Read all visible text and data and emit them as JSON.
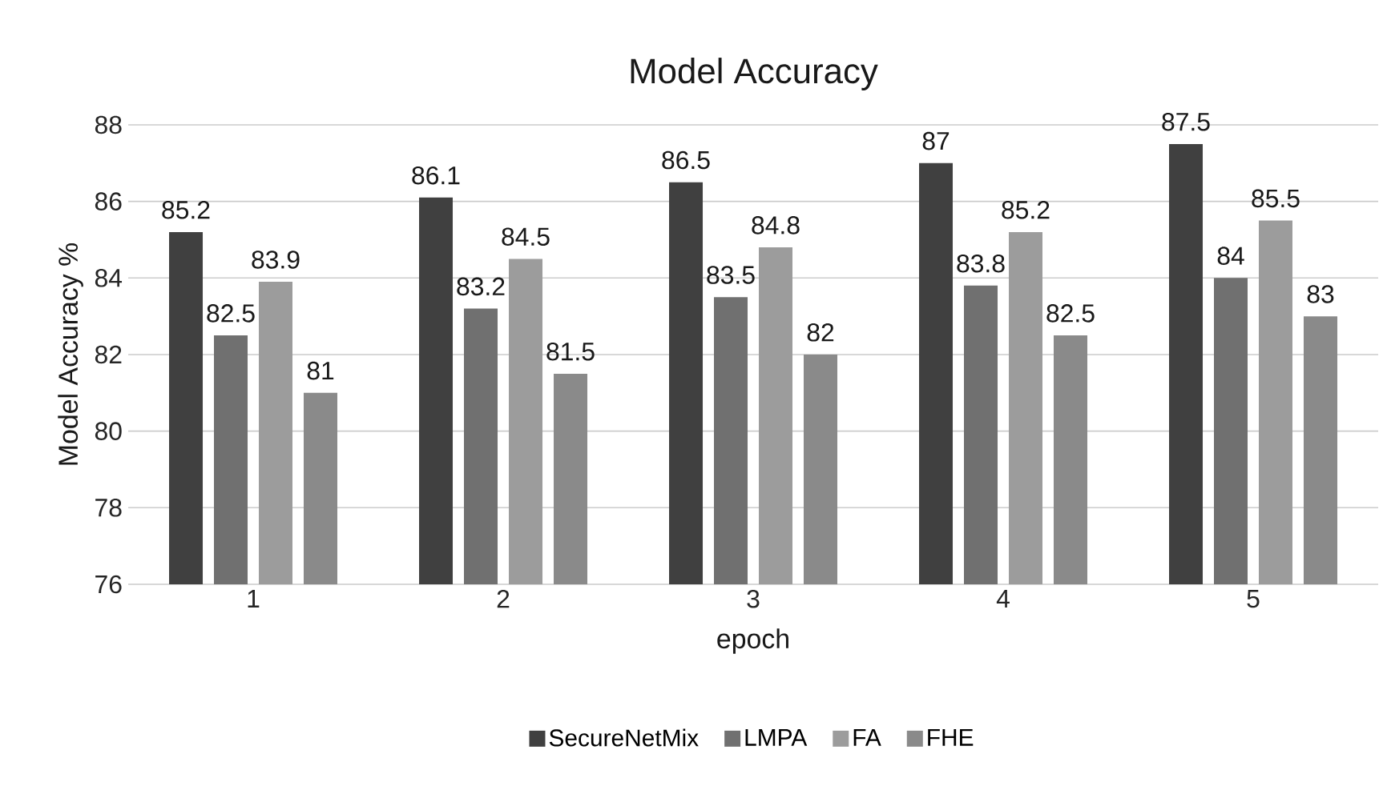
{
  "chart_data": {
    "type": "bar",
    "title": "Model Accuracy",
    "xlabel": "epoch",
    "ylabel": "Model Accuracy %",
    "categories": [
      "1",
      "2",
      "3",
      "4",
      "5"
    ],
    "series": [
      {
        "name": "SecureNetMix",
        "color": "#404040",
        "values": [
          85.2,
          86.1,
          86.5,
          87,
          87.5
        ]
      },
      {
        "name": "LMPA",
        "color": "#707070",
        "values": [
          82.5,
          83.2,
          83.5,
          83.8,
          84
        ]
      },
      {
        "name": "FA",
        "color": "#9c9c9c",
        "values": [
          83.9,
          84.5,
          84.8,
          85.2,
          85.5
        ]
      },
      {
        "name": "FHE",
        "color": "#8a8a8a",
        "values": [
          81,
          81.5,
          82,
          82.5,
          83
        ]
      }
    ],
    "ylim": [
      76,
      88
    ],
    "yticks": [
      76,
      78,
      80,
      82,
      84,
      86,
      88
    ],
    "grid": "y",
    "legend": "bottom",
    "data_labels": true
  }
}
